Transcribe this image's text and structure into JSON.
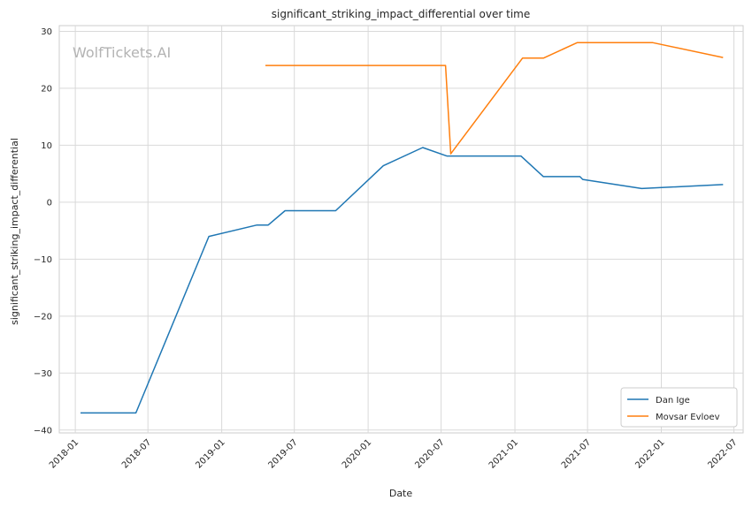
{
  "watermark": "WolfTickets.AI",
  "chart_data": {
    "type": "line",
    "title": "significant_striking_impact_differential over time",
    "xlabel": "Date",
    "ylabel": "significant_striking_impact_differential",
    "xlim": [
      "2017-11-22",
      "2022-07-24"
    ],
    "ylim": [
      -40.5,
      31
    ],
    "xticks": [
      "2018-01",
      "2018-07",
      "2019-01",
      "2019-07",
      "2020-01",
      "2020-07",
      "2021-01",
      "2021-07",
      "2022-01",
      "2022-07"
    ],
    "yticks": [
      -40,
      -30,
      -20,
      -10,
      0,
      10,
      20,
      30
    ],
    "ytick_labels": [
      "−40",
      "−30",
      "−20",
      "−10",
      "0",
      "10",
      "20",
      "30"
    ],
    "grid": true,
    "legend_position": "lower-right",
    "series": [
      {
        "name": "Dan Ige",
        "color": "#1f77b4",
        "points": [
          [
            "2018-01-14",
            -37
          ],
          [
            "2018-06-01",
            -37
          ],
          [
            "2018-11-30",
            -6
          ],
          [
            "2019-03-30",
            -4
          ],
          [
            "2019-04-27",
            -4
          ],
          [
            "2019-06-08",
            -1.5
          ],
          [
            "2019-10-12",
            -1.5
          ],
          [
            "2020-02-08",
            6.4
          ],
          [
            "2020-05-16",
            9.6
          ],
          [
            "2020-07-15",
            8.1
          ],
          [
            "2021-01-16",
            8.1
          ],
          [
            "2021-03-13",
            4.5
          ],
          [
            "2021-06-12",
            4.5
          ],
          [
            "2021-06-19",
            4.0
          ],
          [
            "2021-11-13",
            2.4
          ],
          [
            "2022-06-04",
            3.1
          ]
        ]
      },
      {
        "name": "Movsar Evloev",
        "color": "#ff7f0e",
        "points": [
          [
            "2019-04-20",
            24
          ],
          [
            "2020-07-12",
            24
          ],
          [
            "2020-07-25",
            8.5
          ],
          [
            "2021-01-20",
            25.3
          ],
          [
            "2021-03-13",
            25.3
          ],
          [
            "2021-06-05",
            28
          ],
          [
            "2021-12-11",
            28
          ],
          [
            "2022-06-04",
            25.4
          ]
        ]
      }
    ]
  }
}
